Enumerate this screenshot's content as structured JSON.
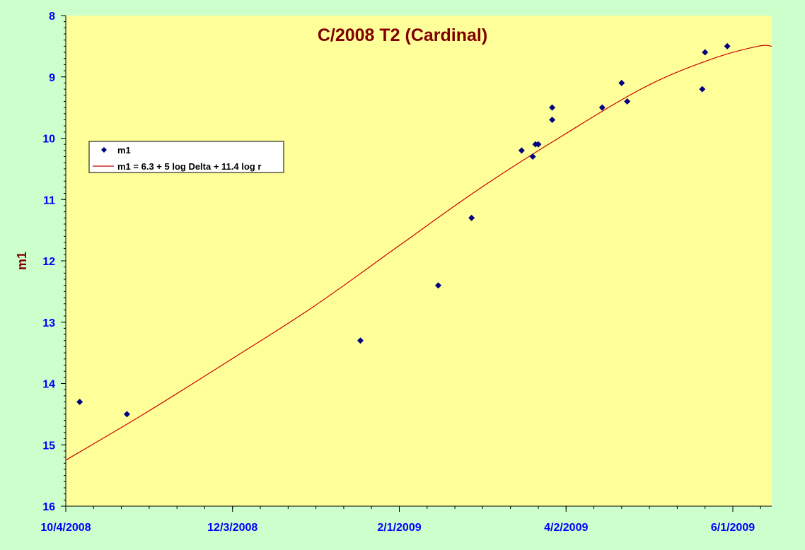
{
  "chart_data": {
    "type": "scatter",
    "title": "C/2008 T2 (Cardinal)",
    "xlabel": "",
    "ylabel": "m1",
    "ylim": [
      8,
      16
    ],
    "y_inverted": true,
    "xlim": [
      "2008-10-04",
      "2009-06-15"
    ],
    "x_ticks": [
      "10/4/2008",
      "12/3/2008",
      "2/1/2009",
      "4/2/2009",
      "6/1/2009"
    ],
    "y_ticks": [
      "8",
      "9",
      "10",
      "11",
      "12",
      "13",
      "14",
      "15",
      "16"
    ],
    "grid": false,
    "legend_position": "left",
    "colors": {
      "plot_background": "#ffff99",
      "outer_background": "#ccffcc",
      "marker": "#000080",
      "curve": "#cc0000",
      "axis_text": "#0000ff",
      "title": "#800000"
    },
    "series": [
      {
        "name": "m1",
        "kind": "points",
        "points": [
          {
            "x": "2008-10-09",
            "y": 14.3
          },
          {
            "x": "2008-10-26",
            "y": 14.5
          },
          {
            "x": "2009-01-18",
            "y": 13.3
          },
          {
            "x": "2009-02-15",
            "y": 12.4
          },
          {
            "x": "2009-02-27",
            "y": 11.3
          },
          {
            "x": "2009-03-17",
            "y": 10.2
          },
          {
            "x": "2009-03-21",
            "y": 10.3
          },
          {
            "x": "2009-03-22",
            "y": 10.1
          },
          {
            "x": "2009-03-23",
            "y": 10.1
          },
          {
            "x": "2009-03-28",
            "y": 9.5
          },
          {
            "x": "2009-03-28",
            "y": 9.7
          },
          {
            "x": "2009-04-15",
            "y": 9.5
          },
          {
            "x": "2009-04-22",
            "y": 9.1
          },
          {
            "x": "2009-04-24",
            "y": 9.4
          },
          {
            "x": "2009-05-21",
            "y": 9.2
          },
          {
            "x": "2009-05-22",
            "y": 8.6
          },
          {
            "x": "2009-05-30",
            "y": 8.5
          }
        ]
      },
      {
        "name": "m1 = 6.3 + 5 log Delta + 11.4 log r",
        "kind": "line",
        "points": [
          {
            "x": "2008-10-04",
            "y": 15.25
          },
          {
            "x": "2008-11-01",
            "y": 14.5
          },
          {
            "x": "2008-12-01",
            "y": 13.65
          },
          {
            "x": "2009-01-01",
            "y": 12.75
          },
          {
            "x": "2009-02-01",
            "y": 11.75
          },
          {
            "x": "2009-03-01",
            "y": 10.85
          },
          {
            "x": "2009-04-01",
            "y": 9.95
          },
          {
            "x": "2009-05-01",
            "y": 9.15
          },
          {
            "x": "2009-05-25",
            "y": 8.7
          },
          {
            "x": "2009-06-10",
            "y": 8.5
          },
          {
            "x": "2009-06-15",
            "y": 8.5
          }
        ]
      }
    ]
  }
}
